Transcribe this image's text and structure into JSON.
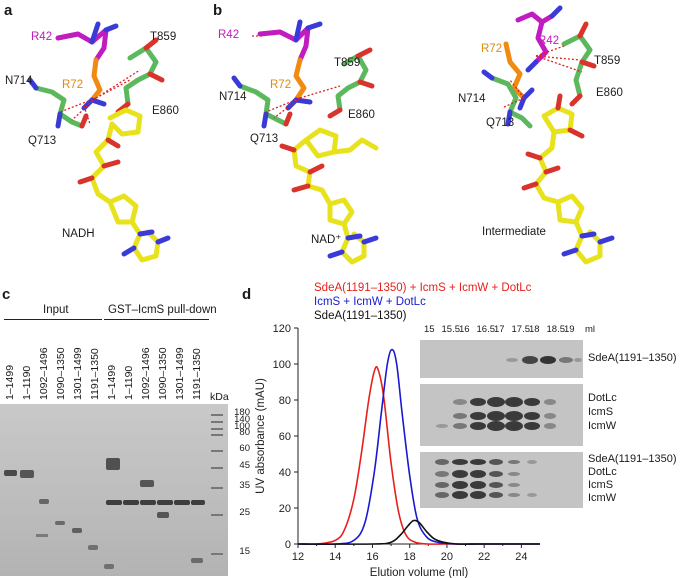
{
  "panels": {
    "a": {
      "letter": "a",
      "labels": {
        "r42": "R42",
        "t859": "T859",
        "n714": "N714",
        "r72": "R72",
        "e860": "E860",
        "q713": "Q713"
      },
      "caption": "NADH"
    },
    "b_left": {
      "letter": "b",
      "labels": {
        "r42": "R42",
        "t859": "T859",
        "n714": "N714",
        "r72": "R72",
        "e860": "E860",
        "q713": "Q713"
      },
      "caption": "NAD⁺"
    },
    "b_right": {
      "labels": {
        "r72": "R72",
        "r42": "R42",
        "t859": "T859",
        "n714": "N714",
        "e860": "E860",
        "q713": "Q713"
      },
      "caption": "Intermediate"
    },
    "c": {
      "letter": "c",
      "group_input": "Input",
      "group_pulldown": "GST–IcmS pull-down",
      "lanes": [
        "1–1499",
        "1–1190",
        "1092–1496",
        "1090–1350",
        "1301–1499",
        "1191–1350",
        "1–1499",
        "1–1190",
        "1092–1496",
        "1090–1350",
        "1301–1499",
        "1191–1350"
      ],
      "kda_label": "kDa",
      "markers": [
        "180",
        "140",
        "100",
        "80",
        "60",
        "45",
        "35",
        "25",
        "15"
      ]
    },
    "d": {
      "letter": "d",
      "legend": [
        {
          "text": "SdeA(1191–1350) + IcmS + IcmW + DotLc",
          "color": "#e8201c"
        },
        {
          "text": "IcmS + IcmW + DotLc",
          "color": "#1a1ad0"
        },
        {
          "text": "SdeA(1191–1350)",
          "color": "#111111"
        }
      ],
      "fractions": [
        "15",
        "15.5",
        "16",
        "16.5",
        "17",
        "17.5",
        "18",
        "18.5",
        "19"
      ],
      "fraction_unit": "ml",
      "strip1_labels": [
        "SdeA(1191–1350)"
      ],
      "strip2_labels": [
        "DotLc",
        "IcmS",
        "IcmW"
      ],
      "strip3_labels": [
        "SdeA(1191–1350)",
        "DotLc",
        "IcmS",
        "IcmW"
      ]
    }
  },
  "chart_data": {
    "type": "line",
    "xlabel": "Elution volume (ml)",
    "ylabel": "UV absorbance (mAU)",
    "xlim": [
      12,
      25
    ],
    "ylim": [
      0,
      120
    ],
    "xticks": [
      12,
      14,
      16,
      18,
      20,
      22,
      24
    ],
    "yticks": [
      0,
      20,
      40,
      60,
      80,
      100,
      120
    ],
    "series": [
      {
        "name": "SdeA(1191–1350) + IcmS + IcmW + DotLc",
        "color": "#e8201c",
        "x": [
          12,
          13,
          14,
          14.5,
          15,
          15.4,
          15.8,
          16.1,
          16.3,
          16.6,
          17.0,
          17.4,
          17.8,
          18.3,
          19,
          20,
          22,
          25
        ],
        "y": [
          0,
          0,
          2,
          8,
          25,
          50,
          80,
          96,
          97,
          82,
          45,
          18,
          5,
          1,
          0,
          0,
          0,
          0
        ]
      },
      {
        "name": "IcmS + IcmW + DotLc",
        "color": "#1a1ad0",
        "x": [
          12,
          14,
          15,
          15.6,
          16.1,
          16.5,
          16.8,
          17.05,
          17.3,
          17.6,
          18.0,
          18.4,
          18.9,
          19.5,
          20.5,
          22,
          25
        ],
        "y": [
          0,
          0,
          2,
          12,
          40,
          75,
          100,
          108,
          100,
          72,
          38,
          14,
          4,
          1,
          0,
          0,
          0
        ]
      },
      {
        "name": "SdeA(1191–1350)",
        "color": "#111111",
        "x": [
          12,
          16,
          17,
          17.5,
          17.9,
          18.2,
          18.5,
          18.9,
          19.3,
          19.8,
          20.5,
          22,
          25
        ],
        "y": [
          0,
          0,
          1,
          5,
          10,
          13,
          12,
          7,
          3,
          1,
          0,
          0,
          0
        ]
      }
    ]
  }
}
